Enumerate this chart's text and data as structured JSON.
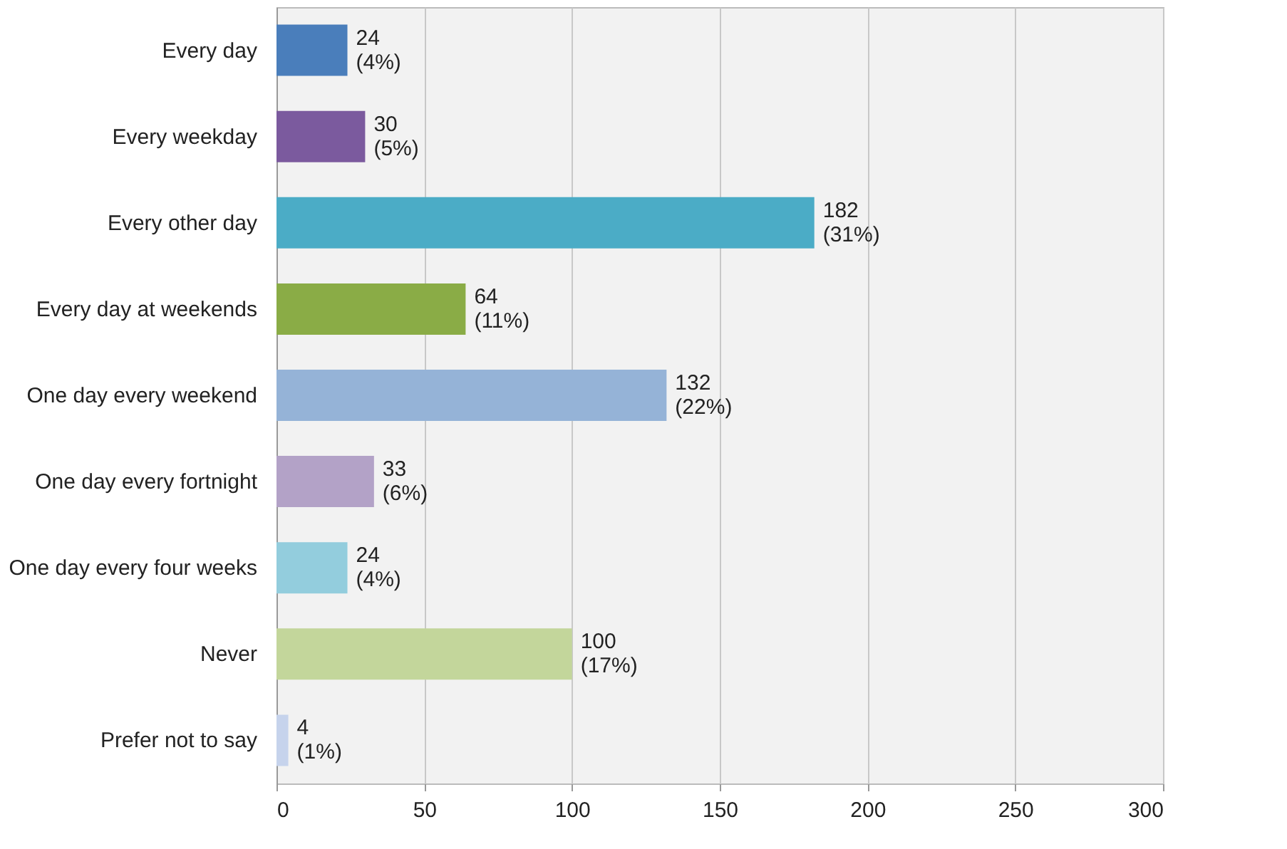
{
  "chart_data": {
    "type": "bar",
    "orientation": "horizontal",
    "categories": [
      "Every day",
      "Every weekday",
      "Every other day",
      "Every day at weekends",
      "One day every weekend",
      "One day every fortnight",
      "One day every four weeks",
      "Never",
      "Prefer not to say"
    ],
    "values": [
      24,
      30,
      182,
      64,
      132,
      33,
      24,
      100,
      4
    ],
    "colors": [
      "#4a7ebb",
      "#7b5a9e",
      "#4bacc6",
      "#8aac46",
      "#95b3d7",
      "#b3a2c7",
      "#93cddd",
      "#c3d69b",
      "#c6d3ec"
    ],
    "value_labels": [
      "24 (4%)",
      "30 (5%)",
      "182 (31%)",
      "64 (11%)",
      "132 (22%)",
      "33 (6%)",
      "24 (4%)",
      "100 (17%)",
      "4 (1%)"
    ],
    "xlim": [
      0,
      300
    ],
    "xticks": [
      0,
      50,
      100,
      150,
      200,
      250,
      300
    ],
    "grid": "x"
  }
}
